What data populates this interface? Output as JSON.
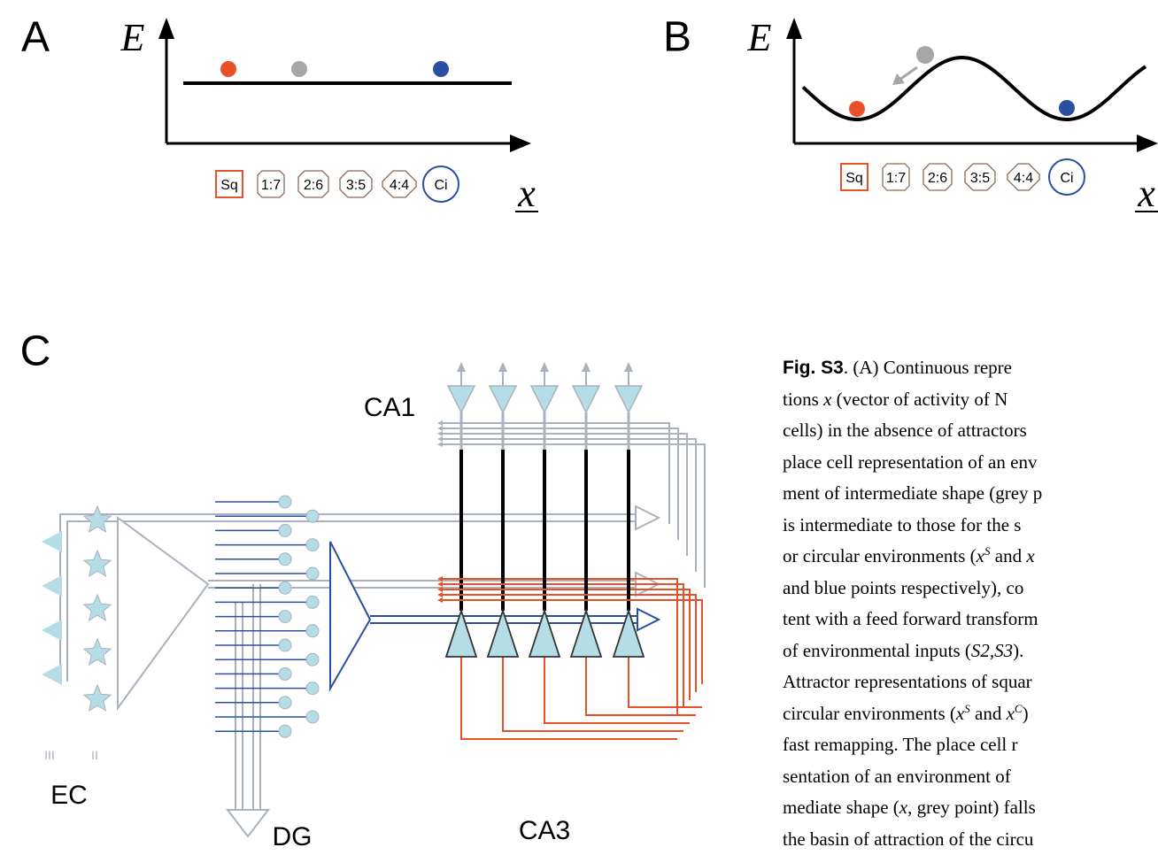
{
  "panels": [
    {
      "label": "A",
      "y_axis": "E",
      "x_axis": "x",
      "shapes": [
        "Sq",
        "1:7",
        "2:6",
        "3:5",
        "4:4",
        "Ci"
      ]
    },
    {
      "label": "B",
      "y_axis": "E",
      "x_axis": "x",
      "shapes": [
        "Sq",
        "1:7",
        "2:6",
        "3:5",
        "4:4",
        "Ci"
      ]
    }
  ],
  "panel_c": {
    "label": "C",
    "regions": {
      "ca1": "CA1",
      "ec": "EC",
      "dg": "DG",
      "ca3": "CA3"
    },
    "layers": [
      "III",
      "II"
    ]
  },
  "caption": [
    [
      {
        "text": "Fig. S3",
        "style": "b"
      },
      {
        "text": ". (A) Continuous repre",
        "style": "n"
      }
    ],
    [
      {
        "text": "tions ",
        "style": "n"
      },
      {
        "text": "x",
        "style": "i"
      },
      {
        "text": " (vector of activity of N",
        "style": "n"
      }
    ],
    [
      {
        "text": "cells) in the absence of attractors",
        "style": "n"
      }
    ],
    [
      {
        "text": "place cell representation of an env",
        "style": "n"
      }
    ],
    [
      {
        "text": "ment of intermediate shape (grey p",
        "style": "n"
      }
    ],
    [
      {
        "text": "is intermediate to those for the s",
        "style": "n"
      }
    ],
    [
      {
        "text": "or circular environments (",
        "style": "n"
      },
      {
        "text": "x",
        "style": "i"
      },
      {
        "text": "S",
        "style": "sup"
      },
      {
        "text": " and ",
        "style": "n"
      },
      {
        "text": "x",
        "style": "i"
      }
    ],
    [
      {
        "text": "and blue points respectively), co",
        "style": "n"
      }
    ],
    [
      {
        "text": "tent with a feed forward transform",
        "style": "n"
      }
    ],
    [
      {
        "text": "of  environmental inputs (",
        "style": "n"
      },
      {
        "text": "S2,S3",
        "style": "i"
      },
      {
        "text": ").",
        "style": "n"
      }
    ],
    [
      {
        "text": "Attractor representations of squar",
        "style": "n"
      }
    ],
    [
      {
        "text": "circular environments (",
        "style": "n"
      },
      {
        "text": "x",
        "style": "i"
      },
      {
        "text": "S",
        "style": "sup"
      },
      {
        "text": " and ",
        "style": "n"
      },
      {
        "text": "x",
        "style": "i"
      },
      {
        "text": "C",
        "style": "sup"
      },
      {
        "text": ")",
        "style": "n"
      }
    ],
    [
      {
        "text": "fast remapping. The place cell r",
        "style": "n"
      }
    ],
    [
      {
        "text": "sentation of an environment of",
        "style": "n"
      }
    ],
    [
      {
        "text": "mediate shape (",
        "style": "n"
      },
      {
        "text": "x",
        "style": "i"
      },
      {
        "text": ", grey point) falls",
        "style": "n"
      }
    ],
    [
      {
        "text": "the basin of attraction of the circu",
        "style": "n"
      }
    ]
  ]
}
